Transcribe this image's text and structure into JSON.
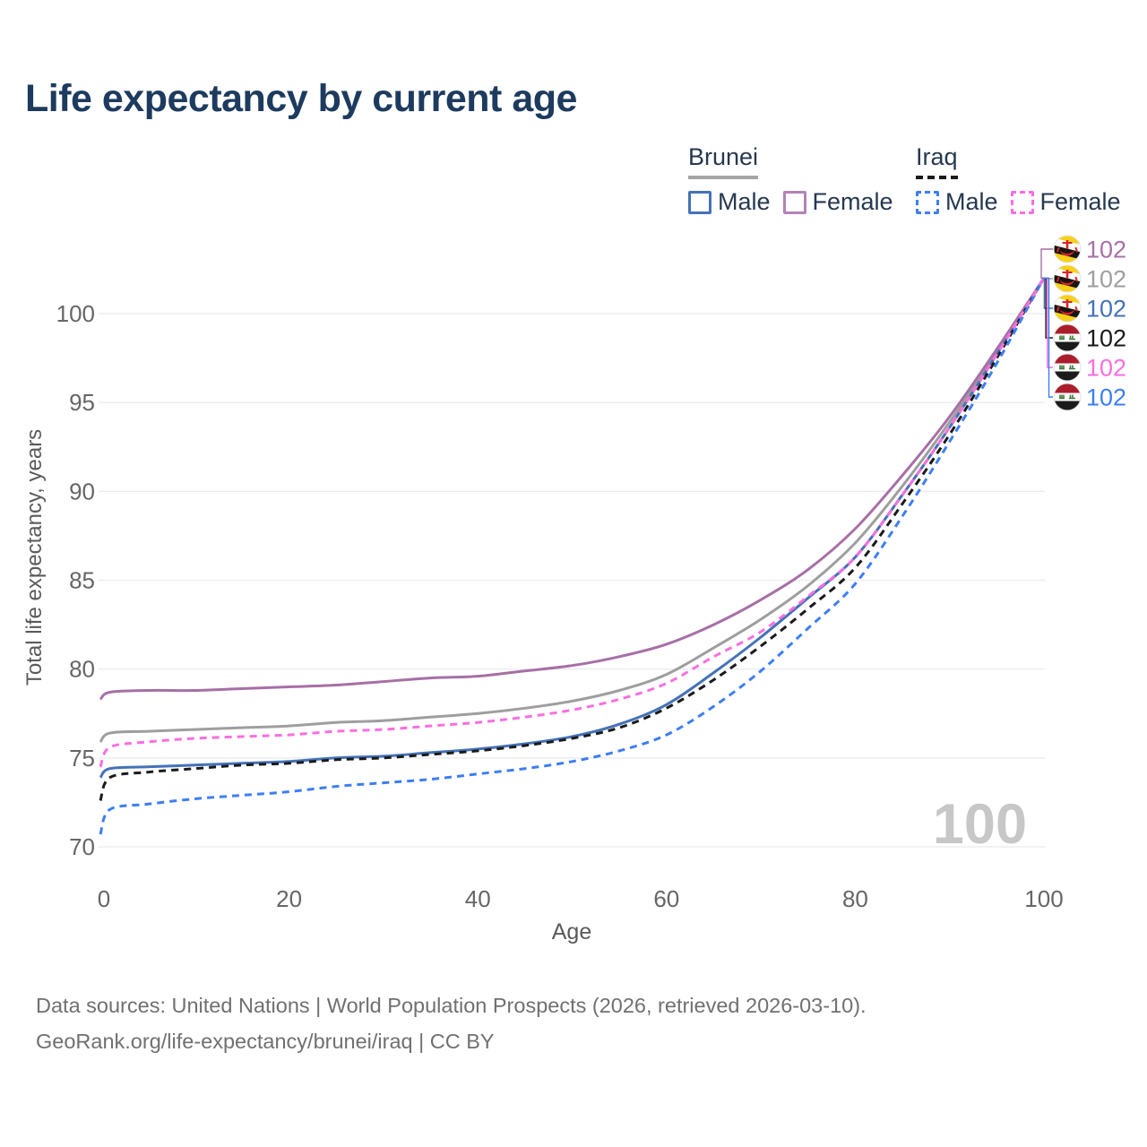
{
  "header": {
    "title": "Life expectancy by current age"
  },
  "legend": {
    "groups": [
      {
        "name": "Brunei",
        "style": "solid",
        "color": "#a6a6a6",
        "entries": [
          {
            "label": "Male",
            "color": "#4472b8",
            "dash": "solid"
          },
          {
            "label": "Female",
            "color": "#b283b5",
            "dash": "solid"
          }
        ]
      },
      {
        "name": "Iraq",
        "style": "dashed",
        "color": "#1a1a1a",
        "entries": [
          {
            "label": "Male",
            "color": "#3d7ef5",
            "dash": "dashed"
          },
          {
            "label": "Female",
            "color": "#fb6ee0",
            "dash": "dashed"
          }
        ]
      }
    ]
  },
  "chart_data": {
    "type": "line",
    "title": "Life expectancy by current age",
    "xlabel": "Age",
    "ylabel": "Total life expectancy, years",
    "xlim": [
      0,
      100
    ],
    "ylim": [
      70,
      102
    ],
    "x_ticks": [
      0,
      20,
      40,
      60,
      80,
      100
    ],
    "y_ticks": [
      70,
      75,
      80,
      85,
      90,
      95,
      100
    ],
    "grid": "horizontal",
    "legend_position": "top-right",
    "age_indicator": "100",
    "ages": [
      0,
      1,
      5,
      10,
      15,
      20,
      25,
      30,
      35,
      40,
      45,
      50,
      55,
      60,
      65,
      70,
      75,
      80,
      85,
      90,
      95,
      100
    ],
    "series": [
      {
        "name": "Brunei Female",
        "country": "brunei",
        "line": "solid",
        "color": "#a76fa6",
        "end_label": "102",
        "values": [
          78.3,
          78.7,
          78.8,
          78.8,
          78.9,
          79.0,
          79.1,
          79.3,
          79.5,
          79.6,
          79.9,
          80.2,
          80.7,
          81.4,
          82.5,
          83.9,
          85.6,
          87.9,
          90.9,
          94.2,
          98.0,
          102
        ]
      },
      {
        "name": "Brunei",
        "country": "brunei",
        "line": "solid",
        "color": "#9e9e9e",
        "end_label": "102",
        "values": [
          75.9,
          76.4,
          76.5,
          76.6,
          76.7,
          76.8,
          77.0,
          77.1,
          77.3,
          77.5,
          77.8,
          78.2,
          78.8,
          79.7,
          81.2,
          82.8,
          84.7,
          87.1,
          90.3,
          93.9,
          97.9,
          102
        ]
      },
      {
        "name": "Brunei Male",
        "country": "brunei",
        "line": "solid",
        "color": "#4472b8",
        "end_label": "102",
        "values": [
          73.9,
          74.4,
          74.5,
          74.6,
          74.7,
          74.8,
          75.0,
          75.1,
          75.3,
          75.5,
          75.8,
          76.2,
          76.9,
          78.0,
          79.8,
          81.8,
          84.0,
          86.3,
          89.8,
          93.6,
          97.7,
          102
        ]
      },
      {
        "name": "Iraq",
        "country": "iraq",
        "line": "dashed",
        "color": "#1a1a1a",
        "end_label": "102",
        "values": [
          72.6,
          73.9,
          74.2,
          74.4,
          74.6,
          74.7,
          74.9,
          75.0,
          75.2,
          75.4,
          75.7,
          76.1,
          76.7,
          77.8,
          79.4,
          81.3,
          83.4,
          85.7,
          89.3,
          93.2,
          97.5,
          102
        ]
      },
      {
        "name": "Iraq Female",
        "country": "iraq",
        "line": "dashed",
        "color": "#fb6ee0",
        "end_label": "102",
        "values": [
          74.5,
          75.6,
          75.9,
          76.1,
          76.2,
          76.3,
          76.5,
          76.6,
          76.8,
          77.0,
          77.3,
          77.7,
          78.3,
          79.2,
          80.7,
          82.1,
          84.1,
          86.3,
          89.8,
          93.6,
          97.7,
          102
        ]
      },
      {
        "name": "Iraq Male",
        "country": "iraq",
        "line": "dashed",
        "color": "#3d7ef5",
        "end_label": "102",
        "values": [
          70.7,
          72.1,
          72.4,
          72.7,
          72.9,
          73.1,
          73.4,
          73.6,
          73.8,
          74.1,
          74.4,
          74.8,
          75.4,
          76.3,
          77.9,
          79.9,
          82.3,
          84.8,
          88.6,
          92.8,
          97.2,
          102
        ]
      }
    ],
    "colors": {
      "title": "#1d3b5e",
      "axis_text": "#666666",
      "axis_title": "#5a5a5a",
      "grid": "#ebebeb",
      "watermark": "#c7c7c7"
    }
  },
  "footer": {
    "lines": [
      "Data sources: United Nations | World Population Prospects (2026, retrieved 2026-03-10).",
      "GeoRank.org/life-expectancy/brunei/iraq | CC BY"
    ]
  }
}
